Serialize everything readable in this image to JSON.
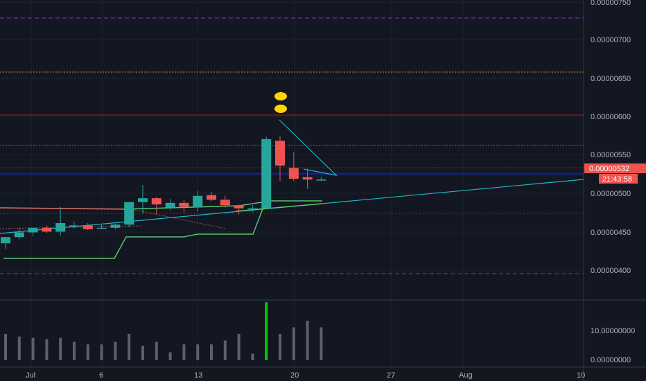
{
  "colors": {
    "background": "#131722",
    "grid": "#1e222d",
    "axis_text": "#b2b5be",
    "up": "#26a69a",
    "down": "#ef5350",
    "volume": "#5d606b",
    "volume_highlight": "#00c805",
    "price_tag": "#ef5350",
    "trend_cyan": "#1fb7c9",
    "stop_green": "#5cc46d",
    "level_purple": "#7b1fa2",
    "level_red": "#b71c1c",
    "level_orange": "#ff9800",
    "level_gray": "#787b86",
    "marker_yellow": "#ffd600"
  },
  "price_axis": {
    "labels": [
      "0.00000750",
      "0.00000700",
      "0.00000650",
      "0.00000600",
      "0.00000550",
      "0.00000500",
      "0.00000450",
      "0.00000400"
    ],
    "last_price": "0.00000532",
    "countdown": "21:43:58"
  },
  "volume_axis": {
    "labels": [
      "10.00000000",
      "0.00000000"
    ]
  },
  "time_axis": {
    "labels": [
      "Jul",
      "6",
      "13",
      "20",
      "27",
      "Aug",
      "10"
    ]
  },
  "chart_data": {
    "type": "candlestick",
    "ylim": [
      3.78e-06,
      7.63e-06
    ],
    "candles": [
      {
        "o": 4.5e-06,
        "h": 4.58e-06,
        "l": 4.43e-06,
        "c": 4.58e-06
      },
      {
        "o": 4.58e-06,
        "h": 4.7e-06,
        "l": 4.55e-06,
        "c": 4.64e-06
      },
      {
        "o": 4.64e-06,
        "h": 4.69e-06,
        "l": 4.59e-06,
        "c": 4.7e-06
      },
      {
        "o": 4.7e-06,
        "h": 4.73e-06,
        "l": 4.63e-06,
        "c": 4.65e-06
      },
      {
        "o": 4.65e-06,
        "h": 4.97e-06,
        "l": 4.6e-06,
        "c": 4.76e-06
      },
      {
        "o": 4.73e-06,
        "h": 4.78e-06,
        "l": 4.69e-06,
        "c": 4.73e-06
      },
      {
        "o": 4.73e-06,
        "h": 4.76e-06,
        "l": 4.67e-06,
        "c": 4.68e-06
      },
      {
        "o": 4.7e-06,
        "h": 4.74e-06,
        "l": 4.68e-06,
        "c": 4.7e-06
      },
      {
        "o": 4.7e-06,
        "h": 4.75e-06,
        "l": 4.68e-06,
        "c": 4.74e-06
      },
      {
        "o": 4.74e-06,
        "h": 5.03e-06,
        "l": 4.71e-06,
        "c": 5.03e-06
      },
      {
        "o": 5.03e-06,
        "h": 5.25e-06,
        "l": 4.88e-06,
        "c": 5.08e-06
      },
      {
        "o": 5.08e-06,
        "h": 5.1e-06,
        "l": 4.87e-06,
        "c": 5e-06
      },
      {
        "o": 4.96e-06,
        "h": 5.07e-06,
        "l": 4.93e-06,
        "c": 5.02e-06
      },
      {
        "o": 5.02e-06,
        "h": 5.06e-06,
        "l": 4.89e-06,
        "c": 4.97e-06
      },
      {
        "o": 4.96e-06,
        "h": 5.17e-06,
        "l": 4.91e-06,
        "c": 5.11e-06
      },
      {
        "o": 5.12e-06,
        "h": 5.16e-06,
        "l": 5.04e-06,
        "c": 5.06e-06
      },
      {
        "o": 5.06e-06,
        "h": 5.11e-06,
        "l": 4.96e-06,
        "c": 4.99e-06
      },
      {
        "o": 4.99e-06,
        "h": 5e-06,
        "l": 4.87e-06,
        "c": 4.95e-06
      },
      {
        "o": 4.95e-06,
        "h": 4.99e-06,
        "l": 4.9e-06,
        "c": 4.95e-06
      },
      {
        "o": 4.95e-06,
        "h": 5.87e-06,
        "l": 4.95e-06,
        "c": 5.84e-06
      },
      {
        "o": 5.82e-06,
        "h": 5.88e-06,
        "l": 5.3e-06,
        "c": 5.5e-06
      },
      {
        "o": 5.47e-06,
        "h": 5.67e-06,
        "l": 5.3e-06,
        "c": 5.33e-06
      },
      {
        "o": 5.35e-06,
        "h": 5.46e-06,
        "l": 5.2e-06,
        "c": 5.32e-06
      },
      {
        "o": 5.32e-06,
        "h": 5.35e-06,
        "l": 5.3e-06,
        "c": 5.32e-06
      }
    ],
    "volumes": [
      10,
      9,
      8.5,
      8,
      8.5,
      7,
      6,
      6,
      7,
      10,
      5.5,
      7,
      3,
      6,
      6,
      6,
      7.5,
      10,
      2.5,
      22,
      10,
      12.5,
      15,
      12.5
    ]
  }
}
